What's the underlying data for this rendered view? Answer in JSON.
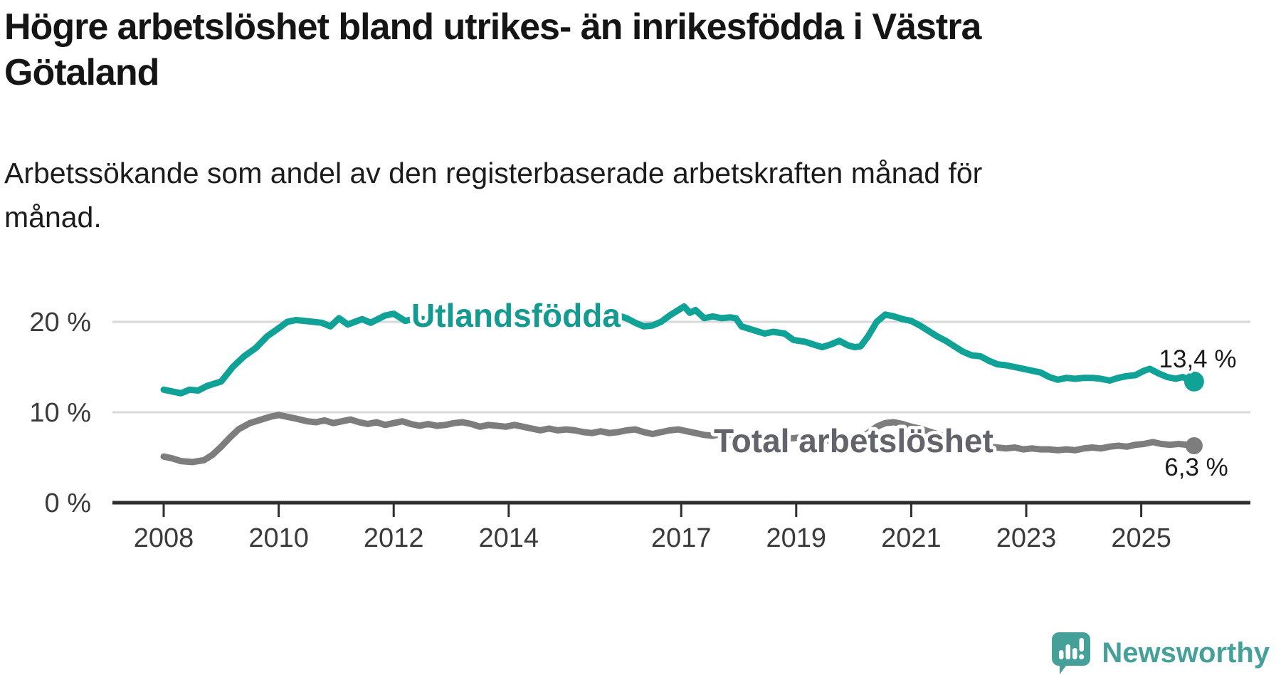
{
  "title": "Högre arbetslöshet bland utrikes- än inrikesfödda i Västra Götaland",
  "title_lines": [
    "Högre arbetslöshet bland utrikes- än inrikesfödda i Västra",
    "Götaland"
  ],
  "subtitle": "Arbetssökande som andel av den registerbaserade arbetskraften månad för månad.",
  "subtitle_lines": [
    "Arbetssökande som andel av den registerbaserade arbetskraften månad för",
    "månad."
  ],
  "chart_data": {
    "type": "line",
    "unit": "%",
    "grid": "horizontal",
    "ylim": [
      0,
      23
    ],
    "x_domain": [
      2008,
      2026
    ],
    "colors": {
      "grid": "#d9d9d9",
      "axis": "#2e2e2e",
      "tick_text": "#3a3a3a"
    },
    "y_ticks": [
      {
        "value": 20,
        "label": "20 %"
      },
      {
        "value": 10,
        "label": "10 %"
      },
      {
        "value": 0,
        "label": "0 %"
      }
    ],
    "x_ticks": [
      {
        "year": 2008,
        "label": "2008"
      },
      {
        "year": 2010,
        "label": "2010"
      },
      {
        "year": 2012,
        "label": "2012"
      },
      {
        "year": 2014,
        "label": "2014"
      },
      {
        "year": 2017,
        "label": "2017"
      },
      {
        "year": 2019,
        "label": "2019"
      },
      {
        "year": 2021,
        "label": "2021"
      },
      {
        "year": 2023,
        "label": "2023"
      },
      {
        "year": 2025,
        "label": "2025"
      }
    ],
    "series": [
      {
        "name": "Utlandsfödda",
        "color": "#10a197",
        "label_color": "#149a90",
        "end_label": "13,4 %",
        "end_value": 13.4,
        "points": [
          [
            2008.0,
            12.5
          ],
          [
            2008.15,
            12.3
          ],
          [
            2008.3,
            12.1
          ],
          [
            2008.45,
            12.5
          ],
          [
            2008.6,
            12.4
          ],
          [
            2008.75,
            12.9
          ],
          [
            2009.0,
            13.4
          ],
          [
            2009.2,
            15.0
          ],
          [
            2009.4,
            16.2
          ],
          [
            2009.6,
            17.1
          ],
          [
            2009.8,
            18.4
          ],
          [
            2010.0,
            19.3
          ],
          [
            2010.15,
            20.0
          ],
          [
            2010.3,
            20.2
          ],
          [
            2010.45,
            20.1
          ],
          [
            2010.6,
            20.0
          ],
          [
            2010.75,
            19.9
          ],
          [
            2010.9,
            19.5
          ],
          [
            2011.05,
            20.4
          ],
          [
            2011.2,
            19.7
          ],
          [
            2011.45,
            20.3
          ],
          [
            2011.6,
            19.9
          ],
          [
            2011.85,
            20.7
          ],
          [
            2012.0,
            20.9
          ],
          [
            2012.2,
            20.1
          ],
          [
            2012.4,
            20.4
          ],
          [
            2012.6,
            20.2
          ],
          [
            2012.8,
            20.4
          ],
          [
            2013.0,
            20.3
          ],
          [
            2013.2,
            20.5
          ],
          [
            2013.4,
            20.4
          ],
          [
            2013.6,
            20.2
          ],
          [
            2013.8,
            20.3
          ],
          [
            2014.0,
            20.4
          ],
          [
            2014.2,
            20.3
          ],
          [
            2014.4,
            20.1
          ],
          [
            2014.6,
            20.0
          ],
          [
            2014.8,
            20.1
          ],
          [
            2015.0,
            20.2
          ],
          [
            2015.2,
            20.1
          ],
          [
            2015.4,
            20.2
          ],
          [
            2015.6,
            20.5
          ],
          [
            2015.75,
            20.8
          ],
          [
            2015.9,
            20.7
          ],
          [
            2016.05,
            20.4
          ],
          [
            2016.2,
            19.9
          ],
          [
            2016.35,
            19.5
          ],
          [
            2016.5,
            19.6
          ],
          [
            2016.65,
            20.0
          ],
          [
            2016.8,
            20.7
          ],
          [
            2016.95,
            21.3
          ],
          [
            2017.05,
            21.7
          ],
          [
            2017.15,
            21.0
          ],
          [
            2017.25,
            21.3
          ],
          [
            2017.4,
            20.4
          ],
          [
            2017.55,
            20.6
          ],
          [
            2017.7,
            20.4
          ],
          [
            2017.85,
            20.5
          ],
          [
            2017.95,
            20.4
          ],
          [
            2018.05,
            19.5
          ],
          [
            2018.25,
            19.1
          ],
          [
            2018.45,
            18.7
          ],
          [
            2018.6,
            18.9
          ],
          [
            2018.8,
            18.7
          ],
          [
            2018.95,
            18.0
          ],
          [
            2019.15,
            17.8
          ],
          [
            2019.3,
            17.5
          ],
          [
            2019.45,
            17.2
          ],
          [
            2019.6,
            17.5
          ],
          [
            2019.75,
            17.9
          ],
          [
            2019.9,
            17.4
          ],
          [
            2020.02,
            17.2
          ],
          [
            2020.12,
            17.3
          ],
          [
            2020.25,
            18.4
          ],
          [
            2020.4,
            20.0
          ],
          [
            2020.55,
            20.8
          ],
          [
            2020.7,
            20.6
          ],
          [
            2020.85,
            20.3
          ],
          [
            2021.0,
            20.1
          ],
          [
            2021.15,
            19.6
          ],
          [
            2021.3,
            19.0
          ],
          [
            2021.45,
            18.4
          ],
          [
            2021.6,
            17.9
          ],
          [
            2021.75,
            17.3
          ],
          [
            2021.9,
            16.7
          ],
          [
            2022.05,
            16.3
          ],
          [
            2022.2,
            16.2
          ],
          [
            2022.35,
            15.7
          ],
          [
            2022.5,
            15.3
          ],
          [
            2022.65,
            15.2
          ],
          [
            2022.8,
            15.0
          ],
          [
            2022.95,
            14.8
          ],
          [
            2023.1,
            14.6
          ],
          [
            2023.25,
            14.4
          ],
          [
            2023.4,
            13.9
          ],
          [
            2023.55,
            13.6
          ],
          [
            2023.7,
            13.8
          ],
          [
            2023.85,
            13.7
          ],
          [
            2024.0,
            13.8
          ],
          [
            2024.15,
            13.8
          ],
          [
            2024.3,
            13.7
          ],
          [
            2024.45,
            13.5
          ],
          [
            2024.6,
            13.8
          ],
          [
            2024.75,
            14.0
          ],
          [
            2024.9,
            14.1
          ],
          [
            2025.05,
            14.6
          ],
          [
            2025.15,
            14.8
          ],
          [
            2025.3,
            14.3
          ],
          [
            2025.45,
            13.9
          ],
          [
            2025.6,
            13.7
          ],
          [
            2025.72,
            13.9
          ],
          [
            2025.92,
            13.4
          ]
        ]
      },
      {
        "name": "Total arbetslöshet",
        "color": "#7d7d7d",
        "label_color": "#63636b",
        "end_label": "6,3 %",
        "end_value": 6.3,
        "points": [
          [
            2008.0,
            5.1
          ],
          [
            2008.15,
            4.9
          ],
          [
            2008.3,
            4.6
          ],
          [
            2008.5,
            4.5
          ],
          [
            2008.7,
            4.7
          ],
          [
            2008.85,
            5.3
          ],
          [
            2009.0,
            6.2
          ],
          [
            2009.15,
            7.2
          ],
          [
            2009.3,
            8.1
          ],
          [
            2009.5,
            8.8
          ],
          [
            2009.7,
            9.2
          ],
          [
            2009.85,
            9.5
          ],
          [
            2010.0,
            9.7
          ],
          [
            2010.15,
            9.5
          ],
          [
            2010.3,
            9.3
          ],
          [
            2010.5,
            9.0
          ],
          [
            2010.65,
            8.9
          ],
          [
            2010.8,
            9.1
          ],
          [
            2010.95,
            8.8
          ],
          [
            2011.1,
            9.0
          ],
          [
            2011.25,
            9.2
          ],
          [
            2011.4,
            8.9
          ],
          [
            2011.55,
            8.7
          ],
          [
            2011.7,
            8.9
          ],
          [
            2011.85,
            8.6
          ],
          [
            2012.0,
            8.8
          ],
          [
            2012.15,
            9.0
          ],
          [
            2012.3,
            8.7
          ],
          [
            2012.45,
            8.5
          ],
          [
            2012.6,
            8.7
          ],
          [
            2012.75,
            8.5
          ],
          [
            2012.9,
            8.6
          ],
          [
            2013.05,
            8.8
          ],
          [
            2013.2,
            8.9
          ],
          [
            2013.35,
            8.7
          ],
          [
            2013.5,
            8.4
          ],
          [
            2013.65,
            8.6
          ],
          [
            2013.8,
            8.5
          ],
          [
            2013.95,
            8.4
          ],
          [
            2014.1,
            8.6
          ],
          [
            2014.25,
            8.4
          ],
          [
            2014.4,
            8.2
          ],
          [
            2014.55,
            8.0
          ],
          [
            2014.7,
            8.2
          ],
          [
            2014.85,
            8.0
          ],
          [
            2015.0,
            8.1
          ],
          [
            2015.15,
            8.0
          ],
          [
            2015.3,
            7.8
          ],
          [
            2015.45,
            7.7
          ],
          [
            2015.6,
            7.9
          ],
          [
            2015.75,
            7.7
          ],
          [
            2015.9,
            7.8
          ],
          [
            2016.05,
            8.0
          ],
          [
            2016.2,
            8.1
          ],
          [
            2016.35,
            7.8
          ],
          [
            2016.5,
            7.6
          ],
          [
            2016.65,
            7.8
          ],
          [
            2016.8,
            8.0
          ],
          [
            2016.95,
            8.1
          ],
          [
            2017.1,
            7.9
          ],
          [
            2017.25,
            7.7
          ],
          [
            2017.4,
            7.5
          ],
          [
            2017.55,
            7.4
          ],
          [
            2017.7,
            7.6
          ],
          [
            2017.85,
            7.4
          ],
          [
            2018.0,
            7.5
          ],
          [
            2018.15,
            7.4
          ],
          [
            2018.3,
            7.2
          ],
          [
            2018.45,
            7.1
          ],
          [
            2018.6,
            7.2
          ],
          [
            2018.75,
            7.3
          ],
          [
            2018.9,
            7.1
          ],
          [
            2019.05,
            7.2
          ],
          [
            2019.2,
            7.0
          ],
          [
            2019.35,
            6.9
          ],
          [
            2019.5,
            6.8
          ],
          [
            2019.65,
            7.0
          ],
          [
            2019.8,
            6.9
          ],
          [
            2019.95,
            7.0
          ],
          [
            2020.1,
            7.1
          ],
          [
            2020.25,
            7.7
          ],
          [
            2020.4,
            8.4
          ],
          [
            2020.55,
            8.8
          ],
          [
            2020.7,
            8.9
          ],
          [
            2020.85,
            8.7
          ],
          [
            2021.0,
            8.4
          ],
          [
            2021.15,
            8.2
          ],
          [
            2021.3,
            7.9
          ],
          [
            2021.45,
            7.6
          ],
          [
            2021.6,
            7.3
          ],
          [
            2021.75,
            7.1
          ],
          [
            2021.9,
            6.9
          ],
          [
            2022.05,
            6.8
          ],
          [
            2022.2,
            6.6
          ],
          [
            2022.35,
            6.2
          ],
          [
            2022.5,
            6.1
          ],
          [
            2022.65,
            6.0
          ],
          [
            2022.8,
            6.1
          ],
          [
            2022.95,
            5.9
          ],
          [
            2023.1,
            6.0
          ],
          [
            2023.25,
            5.9
          ],
          [
            2023.4,
            5.9
          ],
          [
            2023.55,
            5.8
          ],
          [
            2023.7,
            5.9
          ],
          [
            2023.85,
            5.8
          ],
          [
            2024.0,
            6.0
          ],
          [
            2024.15,
            6.1
          ],
          [
            2024.3,
            6.0
          ],
          [
            2024.45,
            6.2
          ],
          [
            2024.6,
            6.3
          ],
          [
            2024.75,
            6.2
          ],
          [
            2024.9,
            6.4
          ],
          [
            2025.05,
            6.5
          ],
          [
            2025.2,
            6.7
          ],
          [
            2025.35,
            6.5
          ],
          [
            2025.5,
            6.4
          ],
          [
            2025.65,
            6.5
          ],
          [
            2025.8,
            6.4
          ],
          [
            2025.92,
            6.3
          ]
        ]
      }
    ]
  },
  "logo": {
    "text": "Newsworthy",
    "color": "#46a09a",
    "icon_color": "#46a09a"
  }
}
